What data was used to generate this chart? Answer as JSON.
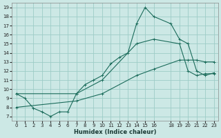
{
  "xlabel": "Humidex (Indice chaleur)",
  "bg_color": "#cce8e5",
  "grid_color": "#9dccc7",
  "line_color": "#1a6b5a",
  "xlim": [
    -0.5,
    23.5
  ],
  "ylim": [
    6.5,
    19.5
  ],
  "xticks": [
    0,
    1,
    2,
    3,
    4,
    5,
    6,
    7,
    8,
    9,
    10,
    11,
    12,
    13,
    14,
    15,
    16,
    18,
    19,
    20,
    21,
    22,
    23
  ],
  "yticks": [
    7,
    8,
    9,
    10,
    11,
    12,
    13,
    14,
    15,
    16,
    17,
    18,
    19
  ],
  "curve_main_x": [
    0,
    1,
    2,
    3,
    4,
    5,
    6,
    7,
    8,
    9,
    10,
    11,
    12,
    13,
    14,
    15,
    16,
    18,
    19,
    20,
    21,
    22,
    23
  ],
  "curve_main_y": [
    9.5,
    9.0,
    7.9,
    7.5,
    7.0,
    7.5,
    7.5,
    9.5,
    10.5,
    11.0,
    11.5,
    12.8,
    13.5,
    14.0,
    17.2,
    19.0,
    18.0,
    17.2,
    15.5,
    15.0,
    12.0,
    11.5,
    11.8
  ],
  "curve_upper_x": [
    0,
    7,
    10,
    14,
    16,
    19,
    20,
    21,
    22,
    23
  ],
  "curve_upper_y": [
    9.5,
    9.5,
    11.0,
    15.0,
    15.5,
    15.0,
    12.0,
    11.5,
    11.7,
    11.7
  ],
  "curve_lower_x": [
    0,
    7,
    10,
    14,
    16,
    19,
    20,
    21,
    22,
    23
  ],
  "curve_lower_y": [
    8.0,
    8.7,
    9.5,
    11.5,
    12.2,
    13.2,
    13.2,
    13.2,
    13.0,
    13.0
  ],
  "xlabel_fontsize": 6,
  "tick_fontsize": 5
}
